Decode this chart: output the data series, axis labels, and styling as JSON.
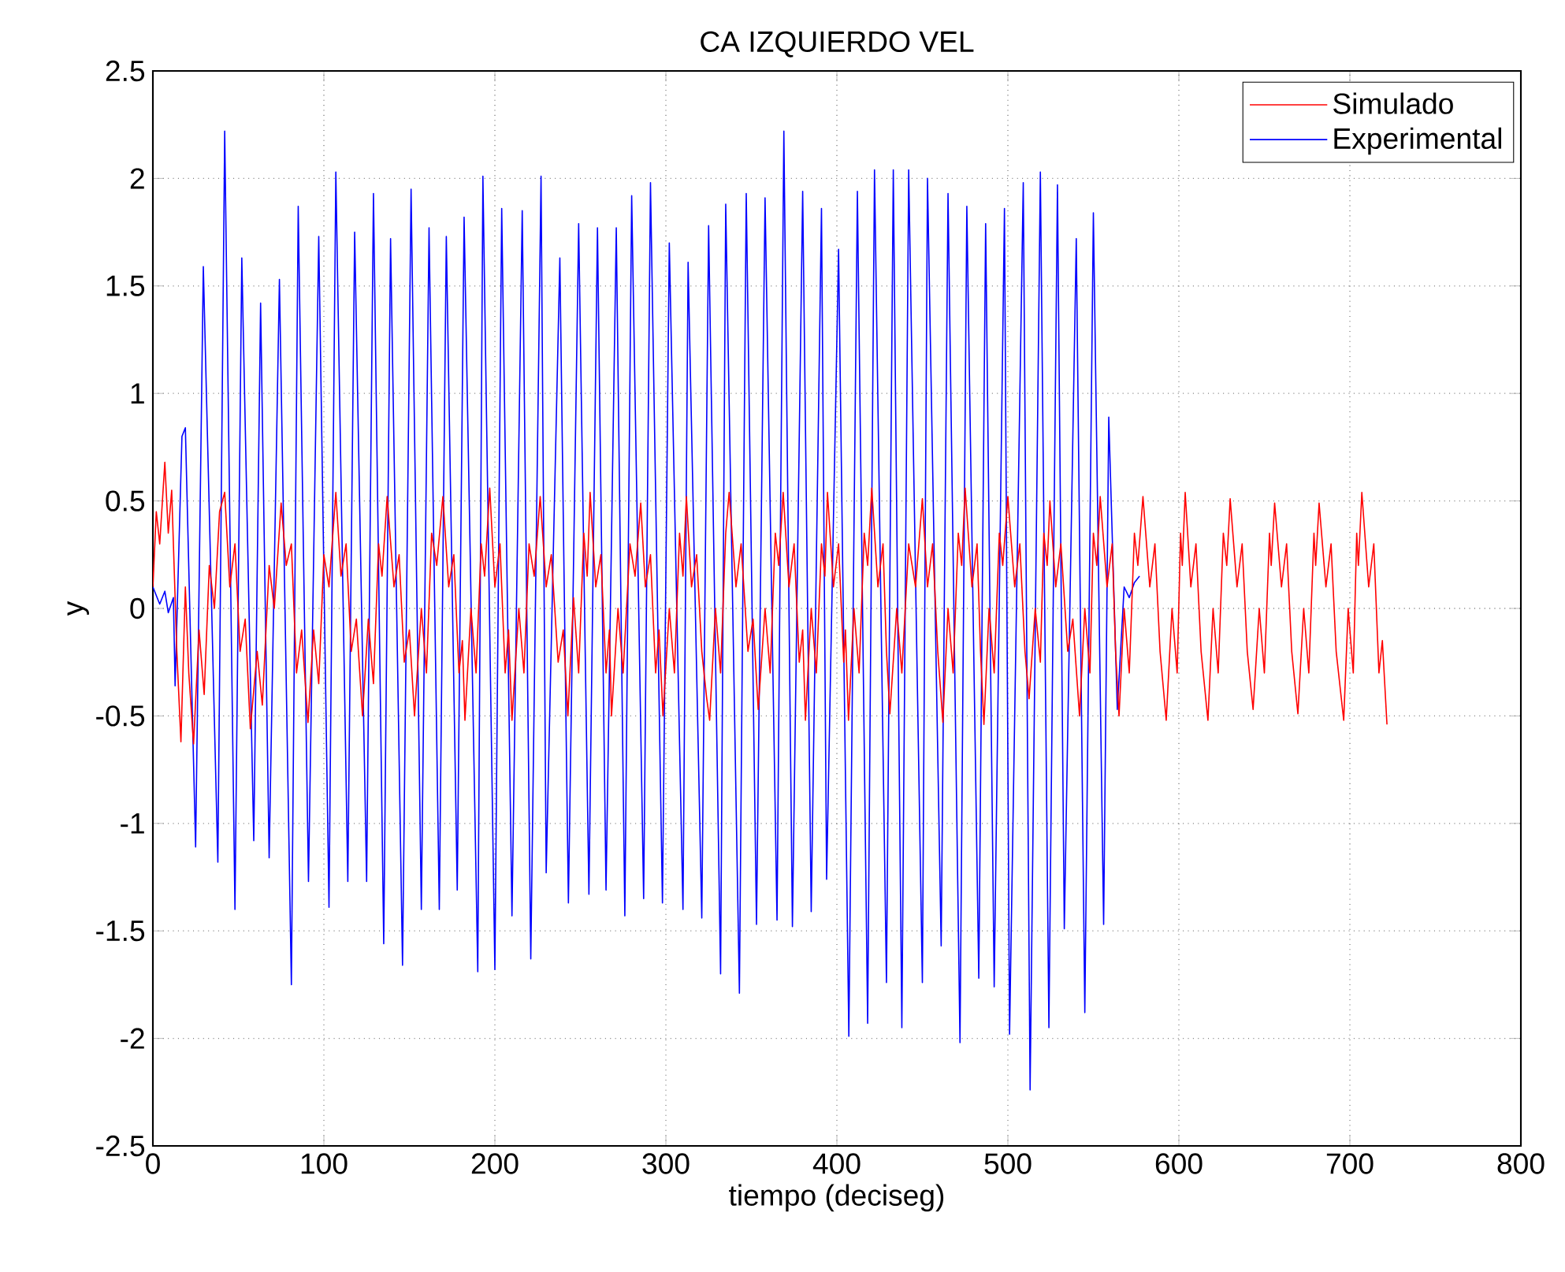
{
  "chart_data": {
    "type": "line",
    "title": "CA IZQUIERDO VEL",
    "xlabel": "tiempo (deciseg)",
    "ylabel": "y",
    "xlim": [
      0,
      800
    ],
    "ylim": [
      -2.5,
      2.5
    ],
    "xticks": [
      0,
      100,
      200,
      300,
      400,
      500,
      600,
      700,
      800
    ],
    "yticks": [
      -2.5,
      -2,
      -1.5,
      -1,
      -0.5,
      0,
      0.5,
      1,
      1.5,
      2,
      2.5
    ],
    "grid": true,
    "legend": "top right",
    "series": [
      {
        "name": "Simulado",
        "color": "#ff0000",
        "x": [
          0,
          2,
          4,
          7,
          9,
          11,
          14,
          16.4,
          19,
          21,
          23.8,
          27,
          30,
          33,
          36,
          39,
          42,
          45,
          48,
          51,
          54,
          57,
          61,
          64,
          68,
          71,
          75,
          78,
          81,
          84,
          87,
          90.7,
          94,
          97,
          100,
          103,
          107,
          110,
          113,
          116,
          119,
          122.6,
          126,
          129,
          132,
          134,
          137,
          141,
          144,
          147,
          150,
          153,
          157,
          160,
          163,
          166,
          169.6,
          173,
          176,
          179,
          181,
          182.5,
          186,
          189,
          192,
          194,
          197,
          200,
          203,
          206,
          208,
          210,
          214,
          217,
          220,
          223,
          226.5,
          230,
          233,
          237,
          240,
          242.7,
          246,
          249,
          252,
          254,
          255.7,
          259,
          262,
          265,
          267,
          268.2,
          272,
          275,
          279,
          282,
          285.3,
          288,
          291,
          294,
          296,
          298.3,
          302,
          305,
          308,
          310,
          312,
          315,
          318,
          321,
          323.9,
          325.6,
          329,
          332,
          335,
          337,
          341,
          344,
          348,
          351,
          354,
          358,
          361,
          364,
          366,
          368.6,
          372,
          375,
          378,
          380,
          381.6,
          385,
          388,
          391,
          393,
          394.5,
          398,
          401,
          404,
          405,
          406.8,
          410,
          413,
          416,
          418,
          420.4,
          424,
          427,
          429,
          431,
          435,
          438,
          442,
          446,
          450,
          453,
          456,
          459,
          462,
          465,
          468,
          471,
          473,
          475,
          479,
          482,
          484,
          486,
          489,
          492,
          495,
          497,
          500,
          504,
          507,
          510,
          512.4,
          516,
          519,
          521,
          523,
          524.6,
          528,
          531,
          535,
          538,
          541.9,
          545,
          548,
          550,
          552,
          554,
          558,
          561,
          563,
          565,
          568,
          571,
          574,
          576,
          579,
          583,
          586,
          589,
          592.6,
          596,
          599,
          601,
          602,
          603.7,
          607,
          610,
          613,
          617,
          620,
          623,
          626,
          628,
          630,
          634,
          637,
          640,
          643.4,
          647,
          650,
          653,
          654,
          656,
          660,
          663,
          666,
          669.6,
          673,
          676,
          679,
          680,
          682,
          686,
          689,
          692,
          696.4,
          699,
          702,
          704,
          705,
          707,
          711,
          714,
          717,
          719,
          721.7
        ],
        "values": [
          0.1,
          0.45,
          0.3,
          0.68,
          0.35,
          0.55,
          -0.2,
          -0.62,
          0.1,
          -0.3,
          -0.63,
          -0.1,
          -0.4,
          0.2,
          0.0,
          0.45,
          0.54,
          0.1,
          0.3,
          -0.2,
          -0.05,
          -0.56,
          -0.2,
          -0.45,
          0.2,
          0.0,
          0.49,
          0.2,
          0.3,
          -0.3,
          -0.1,
          -0.53,
          -0.1,
          -0.35,
          0.25,
          0.1,
          0.54,
          0.15,
          0.3,
          -0.2,
          -0.05,
          -0.5,
          -0.05,
          -0.35,
          0.3,
          0.15,
          0.52,
          0.1,
          0.25,
          -0.25,
          -0.1,
          -0.5,
          0.0,
          -0.3,
          0.35,
          0.2,
          0.52,
          0.1,
          0.25,
          -0.3,
          -0.15,
          -0.52,
          0.0,
          -0.3,
          0.3,
          0.15,
          0.56,
          0.1,
          0.3,
          -0.3,
          -0.1,
          -0.52,
          0.0,
          -0.3,
          0.3,
          0.15,
          0.52,
          0.1,
          0.25,
          -0.25,
          -0.1,
          -0.5,
          0.05,
          -0.3,
          0.35,
          0.15,
          0.54,
          0.1,
          0.25,
          -0.3,
          -0.1,
          -0.5,
          0.0,
          -0.3,
          0.3,
          0.15,
          0.49,
          0.1,
          0.25,
          -0.3,
          -0.1,
          -0.5,
          0.0,
          -0.3,
          0.35,
          0.15,
          0.52,
          0.1,
          0.25,
          -0.2,
          -0.42,
          -0.52,
          0.0,
          -0.3,
          0.35,
          0.54,
          0.1,
          0.3,
          -0.2,
          -0.05,
          -0.47,
          0.0,
          -0.3,
          0.35,
          0.2,
          0.54,
          0.1,
          0.3,
          -0.25,
          -0.1,
          -0.52,
          0.0,
          -0.3,
          0.3,
          0.15,
          0.54,
          0.1,
          0.3,
          -0.25,
          -0.1,
          -0.52,
          0.0,
          -0.3,
          0.35,
          0.2,
          0.56,
          0.1,
          0.3,
          -0.2,
          -0.49,
          0.0,
          -0.3,
          0.3,
          0.1,
          0.51,
          0.1,
          0.3,
          -0.2,
          -0.53,
          0.0,
          -0.3,
          0.35,
          0.2,
          0.56,
          0.1,
          0.3,
          -0.2,
          -0.54,
          0.0,
          -0.3,
          0.35,
          0.2,
          0.52,
          0.1,
          0.3,
          -0.2,
          -0.42,
          0.0,
          -0.25,
          0.35,
          0.2,
          0.5,
          0.1,
          0.3,
          -0.2,
          -0.05,
          -0.5,
          0.0,
          -0.3,
          0.35,
          0.2,
          0.52,
          0.1,
          0.3,
          -0.2,
          -0.5,
          0.0,
          -0.3,
          0.35,
          0.2,
          0.52,
          0.1,
          0.3,
          -0.2,
          -0.52,
          0.0,
          -0.3,
          0.35,
          0.2,
          0.54,
          0.1,
          0.3,
          -0.2,
          -0.52,
          0.0,
          -0.3,
          0.35,
          0.2,
          0.51,
          0.1,
          0.3,
          -0.2,
          -0.47,
          0.0,
          -0.3,
          0.35,
          0.2,
          0.49,
          0.1,
          0.3,
          -0.2,
          -0.49,
          0.0,
          -0.3,
          0.35,
          0.2,
          0.49,
          0.1,
          0.3,
          -0.2,
          -0.52,
          0.0,
          -0.3,
          0.35,
          0.2,
          0.54,
          0.1,
          0.3,
          -0.3,
          -0.15,
          -0.54
        ]
      },
      {
        "name": "Experimental",
        "color": "#0000ff",
        "x": [
          0,
          4,
          7,
          9,
          12,
          13,
          17,
          19,
          25,
          29.5,
          38,
          42,
          48,
          52,
          59,
          63,
          68,
          74,
          81,
          85,
          91,
          97,
          103,
          107,
          114,
          118,
          125,
          129,
          135,
          139,
          146,
          151,
          157,
          161.5,
          167.5,
          171.6,
          178,
          182,
          190,
          193,
          200,
          204,
          210,
          216,
          221,
          227,
          230,
          238,
          243,
          249,
          255,
          260,
          265,
          271,
          276,
          280,
          287,
          291,
          298,
          302,
          310,
          313,
          321,
          325,
          332,
          335,
          343,
          347,
          353,
          358,
          365,
          369,
          374,
          380,
          385,
          391,
          394,
          401,
          407,
          412,
          418,
          422,
          429,
          433,
          438,
          442,
          450,
          453,
          461,
          465,
          472,
          476,
          483,
          487,
          492,
          498,
          501,
          509,
          513,
          519,
          524,
          529,
          533,
          540,
          545,
          550,
          556,
          559,
          564,
          568,
          571,
          574,
          577
        ],
        "values": [
          0.1,
          0.02,
          0.08,
          -0.02,
          0.05,
          -0.36,
          0.8,
          0.84,
          -1.11,
          1.59,
          -1.18,
          2.22,
          -1.4,
          1.63,
          -1.08,
          1.42,
          -1.16,
          1.53,
          -1.75,
          1.87,
          -1.27,
          1.73,
          -1.39,
          2.03,
          -1.27,
          1.75,
          -1.27,
          1.93,
          -1.56,
          1.72,
          -1.66,
          1.95,
          -1.4,
          1.77,
          -1.4,
          1.73,
          -1.31,
          1.82,
          -1.69,
          2.01,
          -1.68,
          1.86,
          -1.43,
          1.85,
          -1.63,
          2.01,
          -1.23,
          1.63,
          -1.37,
          1.79,
          -1.33,
          1.77,
          -1.31,
          1.77,
          -1.43,
          1.92,
          -1.35,
          1.98,
          -1.37,
          1.7,
          -1.4,
          1.61,
          -1.44,
          1.78,
          -1.7,
          1.88,
          -1.79,
          1.93,
          -1.47,
          1.91,
          -1.45,
          2.22,
          -1.48,
          1.94,
          -1.41,
          1.86,
          -1.26,
          1.67,
          -1.99,
          1.94,
          -1.93,
          2.04,
          -1.74,
          2.04,
          -1.95,
          2.04,
          -1.74,
          2.0,
          -1.57,
          1.93,
          -2.02,
          1.87,
          -1.72,
          1.79,
          -1.76,
          1.86,
          -1.98,
          1.98,
          -2.24,
          2.03,
          -1.95,
          1.97,
          -1.49,
          1.72,
          -1.88,
          1.84,
          -1.47,
          0.89,
          -0.47,
          0.1,
          0.05,
          0.12,
          0.15
        ]
      }
    ]
  }
}
